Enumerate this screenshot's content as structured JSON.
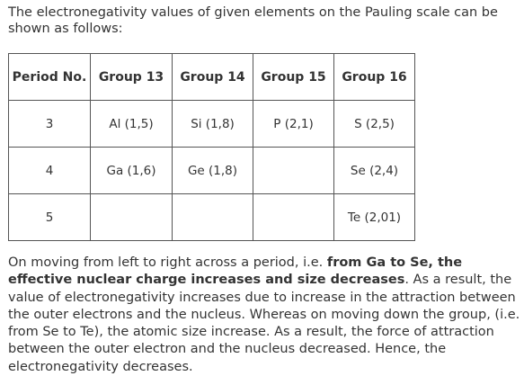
{
  "intro_text": "The electronegativity values of given elements on the Pauling scale can be shown as follows:",
  "table": {
    "headers": [
      "Period No.",
      "Group 13",
      "Group 14",
      "Group 15",
      "Group 16"
    ],
    "rows": [
      [
        "3",
        "Al (1,5)",
        "Si (1,8)",
        "P (2,1)",
        "S (2,5)"
      ],
      [
        "4",
        "Ga (1,6)",
        "Ge (1,8)",
        "",
        "Se (2,4)"
      ],
      [
        "5",
        "",
        "",
        "",
        "Te (2,01)"
      ]
    ]
  },
  "explanation": {
    "part1": "On moving from left to right across a period, i.e. ",
    "bold": "from Ga to Se, the effective nuclear charge increases and size decreases",
    "part2": ". As a result, the value of electronegativity increases due to increase in the attraction between the outer electrons and the nucleus. Whereas on moving down the group, (i.e. from Se to Te), the atomic size increase. As a result, the force of attraction between the outer electron and the nucleus decreased. Hence, the electronegativity decreases."
  }
}
